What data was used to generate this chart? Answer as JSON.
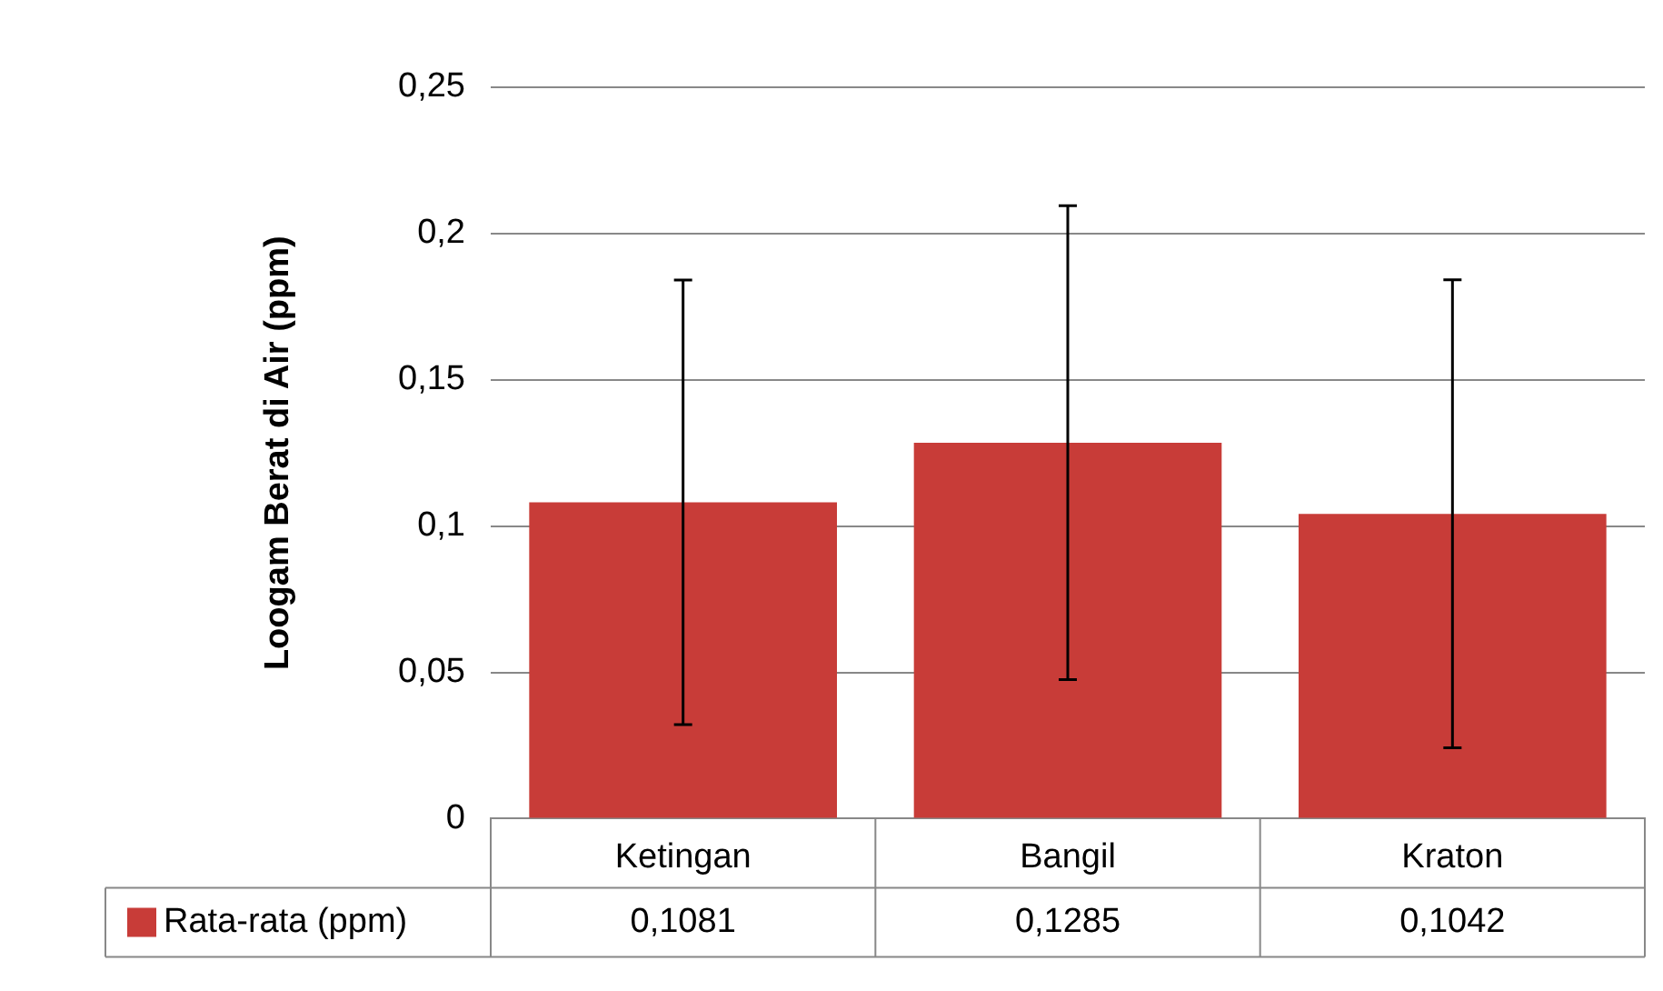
{
  "chart_data": {
    "type": "bar",
    "ylabel": "Loogam Berat di Air (ppm)",
    "categories": [
      "Ketingan",
      "Bangil",
      "Kraton"
    ],
    "series": [
      {
        "name": "Rata-rata (ppm)",
        "color": "#c83c38",
        "values": [
          0.1081,
          0.1285,
          0.1042
        ],
        "value_labels": [
          "0,1081",
          "0,1285",
          "0,1042"
        ],
        "errors": [
          0.076,
          0.081,
          0.08
        ]
      }
    ],
    "ylim": [
      0,
      0.25
    ],
    "yticks": [
      {
        "value": 0,
        "label": "0"
      },
      {
        "value": 0.05,
        "label": "0,05"
      },
      {
        "value": 0.1,
        "label": "0,1"
      },
      {
        "value": 0.15,
        "label": "0,15"
      },
      {
        "value": 0.2,
        "label": "0,2"
      },
      {
        "value": 0.25,
        "label": "0,25"
      }
    ],
    "grid": "y",
    "legend": "bottom"
  }
}
